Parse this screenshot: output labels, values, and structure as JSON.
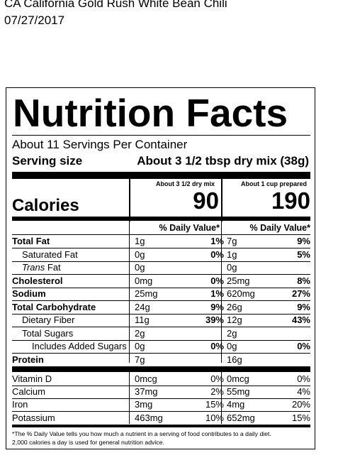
{
  "header": {
    "product": "CA California Gold Rush White Bean Chili",
    "date": "07/27/2017"
  },
  "label": {
    "title": "Nutrition Facts",
    "servings": "About 11 Servings Per Container",
    "serving_size_label": "Serving size",
    "serving_size_value": "About 3 1/2 tbsp dry mix (38g)",
    "col1_header": "About 3 1/2 dry mix",
    "col2_header": "About 1 cup prepared",
    "calories_label": "Calories",
    "calories_1": "90",
    "calories_2": "190",
    "dv_header_1": "% Daily Value*",
    "dv_header_2": "% Daily Value*",
    "nutrients": [
      {
        "name": "Total Fat",
        "a1": "1g",
        "p1": "1%",
        "a2": "7g",
        "p2": "9%"
      },
      {
        "name": "Saturated Fat",
        "a1": "0g",
        "p1": "0%",
        "a2": "1g",
        "p2": "5%"
      },
      {
        "name_italic": "Trans",
        "name_rest": " Fat",
        "a1": "0g",
        "p1": "",
        "a2": "0g",
        "p2": ""
      },
      {
        "name": "Cholesterol",
        "a1": "0mg",
        "p1": "0%",
        "a2": "25mg",
        "p2": "8%"
      },
      {
        "name": "Sodium",
        "a1": "25mg",
        "p1": "1%",
        "a2": "620mg",
        "p2": "27%"
      },
      {
        "name": "Total Carbohydrate",
        "a1": "24g",
        "p1": "9%",
        "a2": "26g",
        "p2": "9%"
      },
      {
        "name": "Dietary Fiber",
        "a1": "11g",
        "p1": "39%",
        "a2": "12g",
        "p2": "43%"
      },
      {
        "name": "Total Sugars",
        "a1": "2g",
        "p1": "",
        "a2": "2g",
        "p2": ""
      },
      {
        "name": "Includes Added Sugars",
        "a1": "0g",
        "p1": "0%",
        "a2": "0g",
        "p2": "0%"
      },
      {
        "name": "Protein",
        "a1": "7g",
        "p1": "",
        "a2": "16g",
        "p2": ""
      }
    ],
    "vitamins": [
      {
        "name": "Vitamin D",
        "a1": "0mcg",
        "p1": "0%",
        "a2": "0mcg",
        "p2": "0%"
      },
      {
        "name": "Calcium",
        "a1": "37mg",
        "p1": "2%",
        "a2": "55mg",
        "p2": "4%"
      },
      {
        "name": "Iron",
        "a1": "3mg",
        "p1": "15%",
        "a2": "4mg",
        "p2": "20%"
      },
      {
        "name": "Potassium",
        "a1": "463mg",
        "p1": "10%",
        "a2": "652mg",
        "p2": "15%"
      }
    ],
    "footnote_1": "*The % Daily Value tells you how much a nutrient in a serving of food contributes to a daily diet.",
    "footnote_2": "2,000 calories a day is used for general nutrition advice."
  }
}
